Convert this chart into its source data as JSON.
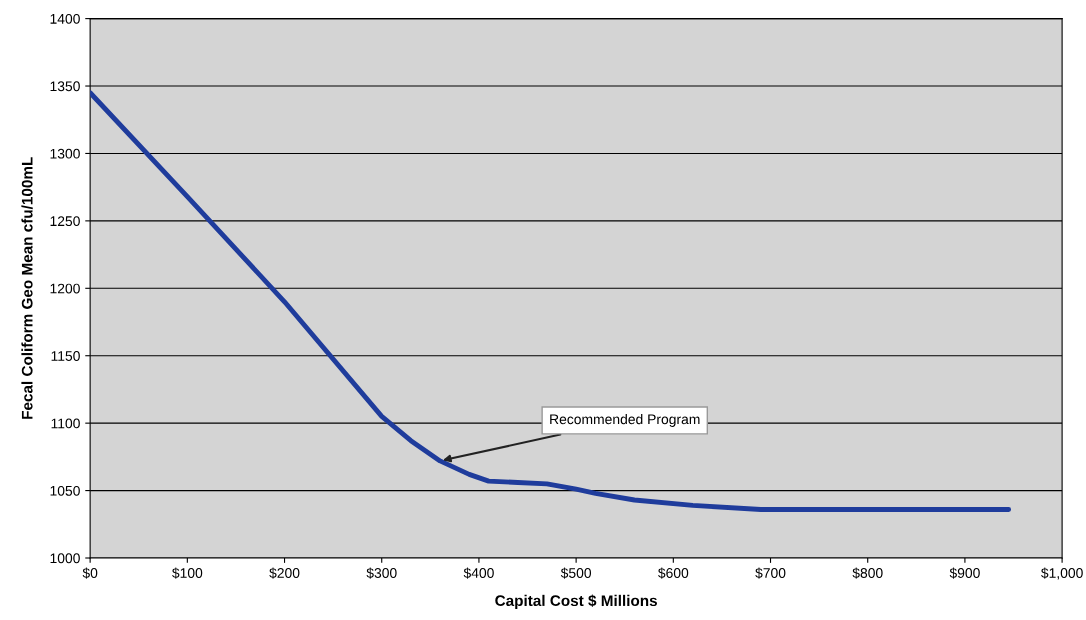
{
  "chart_data": {
    "type": "line",
    "xlabel": "Capital Cost $ Millions",
    "ylabel": "Fecal Coliform Geo Mean cfu/100mL",
    "x": [
      0,
      100,
      200,
      300,
      330,
      360,
      390,
      410,
      440,
      470,
      500,
      520,
      560,
      620,
      690,
      800,
      945
    ],
    "series": [
      {
        "color": "#1f3c9c",
        "values": [
          1345,
          1268,
          1190,
          1105,
          1087,
          1072,
          1062,
          1057,
          1056,
          1055,
          1051,
          1048,
          1043,
          1039,
          1036,
          1036,
          1036
        ]
      }
    ],
    "xlim": [
      0,
      1000
    ],
    "ylim": [
      1000,
      1400
    ],
    "xticks": [
      {
        "value": 0,
        "label": "$0"
      },
      {
        "value": 100,
        "label": "$100"
      },
      {
        "value": 200,
        "label": "$200"
      },
      {
        "value": 300,
        "label": "$300"
      },
      {
        "value": 400,
        "label": "$400"
      },
      {
        "value": 500,
        "label": "$500"
      },
      {
        "value": 600,
        "label": "$600"
      },
      {
        "value": 700,
        "label": "$700"
      },
      {
        "value": 800,
        "label": "$800"
      },
      {
        "value": 900,
        "label": "$900"
      },
      {
        "value": 1000,
        "label": "$1,000"
      }
    ],
    "yticks": [
      1000,
      1050,
      1100,
      1150,
      1200,
      1250,
      1300,
      1350,
      1400
    ],
    "grid": "y",
    "marker": "none",
    "line_style": "solid",
    "annotations": [
      {
        "text": "Recommended Program",
        "x": 360,
        "y": 1072
      }
    ]
  }
}
